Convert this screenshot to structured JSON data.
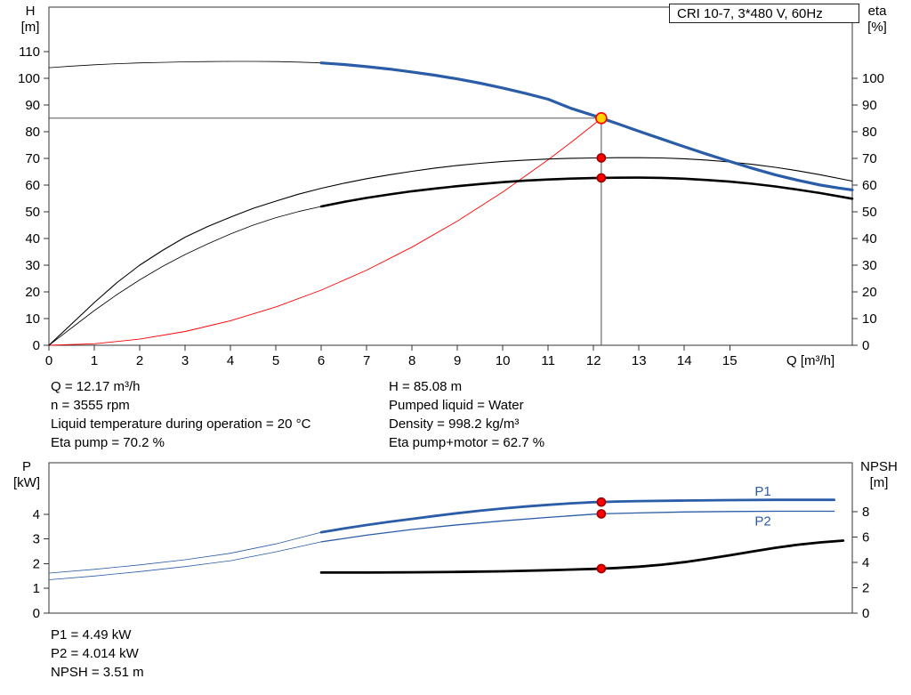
{
  "title_box": "CRI 10-7, 3*480 V, 60Hz",
  "axes": {
    "top_left": [
      "H",
      "[m]"
    ],
    "top_right": [
      "eta",
      "[%]"
    ],
    "x_label": "Q [m³/h]",
    "bottom_left": [
      "P",
      "[kW]"
    ],
    "bottom_right": [
      "NPSH",
      "[m]"
    ]
  },
  "info_top": {
    "left": [
      "Q = 12.17 m³/h",
      "n = 3555 rpm",
      "Liquid temperature during operation = 20 °C",
      "Eta pump = 70.2 %"
    ],
    "right": [
      "H = 85.08 m",
      "Pumped liquid = Water",
      "Density = 998.2 kg/m³",
      "Eta pump+motor = 62.7 %"
    ]
  },
  "info_bottom": [
    "P1 = 4.49 kW",
    "P2 = 4.014 kW",
    "NPSH = 3.51 m"
  ],
  "colors": {
    "pump_blue": "#2a5ca8",
    "black": "#000000",
    "system_red": "#ff0000",
    "guide_gray": "#3a3a3a",
    "marker_yellow": "#ffd400",
    "marker_red": "#ff0000"
  },
  "chart_data": [
    {
      "type": "line",
      "title": "CRI 10-7, 3*480 V, 60Hz — QH and efficiency curves",
      "xlabel": "Q [m³/h]",
      "ylabel_left": "H [m]",
      "ylabel_right": "eta [%]",
      "xlim": [
        0,
        17.7
      ],
      "ylim_left": [
        0,
        126.7
      ],
      "ylim_right": [
        0,
        126.7
      ],
      "x_ticks": [
        0,
        1,
        2,
        3,
        4,
        5,
        6,
        7,
        8,
        9,
        10,
        11,
        12,
        13,
        14,
        15
      ],
      "y_left_ticks": [
        0,
        10,
        20,
        30,
        40,
        50,
        60,
        70,
        80,
        90,
        100,
        110
      ],
      "y_right_ticks": [
        0,
        10,
        20,
        30,
        40,
        50,
        60,
        70,
        80,
        90,
        100
      ],
      "grid": false,
      "series": [
        {
          "name": "h-guide",
          "axis": "left",
          "color": "#3a3a3a",
          "width": 0.9,
          "points": [
            [
              0,
              85.08
            ],
            [
              12.17,
              85.08
            ]
          ]
        },
        {
          "name": "v-guide",
          "axis": "left",
          "color": "#3a3a3a",
          "width": 0.9,
          "points": [
            [
              12.17,
              0
            ],
            [
              12.17,
              85.08
            ]
          ]
        },
        {
          "name": "system-curve",
          "axis": "left",
          "color": "#ff0000",
          "width": 0.9,
          "points": [
            [
              0,
              0
            ],
            [
              1,
              0.57
            ],
            [
              2,
              2.3
            ],
            [
              3,
              5.17
            ],
            [
              4,
              9.19
            ],
            [
              5,
              14.36
            ],
            [
              6,
              20.68
            ],
            [
              7,
              28.15
            ],
            [
              8,
              36.77
            ],
            [
              9,
              46.54
            ],
            [
              10,
              57.45
            ],
            [
              11,
              69.51
            ],
            [
              11.5,
              75.98
            ],
            [
              12,
              82.7
            ],
            [
              12.17,
              85.08
            ]
          ]
        },
        {
          "name": "head-curve-thin",
          "axis": "left",
          "color": "#000000",
          "width": 0.8,
          "points": [
            [
              0,
              104
            ],
            [
              0.5,
              104.6
            ],
            [
              1,
              105.1
            ],
            [
              1.5,
              105.5
            ],
            [
              2,
              105.8
            ],
            [
              2.5,
              106.0
            ],
            [
              3,
              106.2
            ],
            [
              3.5,
              106.3
            ],
            [
              4,
              106.35
            ],
            [
              4.5,
              106.35
            ],
            [
              5,
              106.3
            ],
            [
              5.5,
              106.1
            ],
            [
              6,
              105.8
            ]
          ]
        },
        {
          "name": "eta-pump",
          "axis": "right",
          "color": "#000000",
          "width": 1.1,
          "points": [
            [
              0,
              0
            ],
            [
              0.5,
              8
            ],
            [
              1,
              16
            ],
            [
              1.5,
              23.5
            ],
            [
              2,
              30
            ],
            [
              2.5,
              35.5
            ],
            [
              3,
              40.5
            ],
            [
              3.5,
              44.5
            ],
            [
              4,
              48
            ],
            [
              4.5,
              51.3
            ],
            [
              5,
              54
            ],
            [
              5.5,
              56.6
            ],
            [
              6,
              58.8
            ],
            [
              6.5,
              60.7
            ],
            [
              7,
              62.4
            ],
            [
              7.5,
              63.9
            ],
            [
              8,
              65.2
            ],
            [
              8.5,
              66.4
            ],
            [
              9,
              67.4
            ],
            [
              9.5,
              68.2
            ],
            [
              10,
              68.9
            ],
            [
              10.5,
              69.4
            ],
            [
              11,
              69.8
            ],
            [
              11.5,
              70.05
            ],
            [
              12,
              70.18
            ],
            [
              12.17,
              70.2
            ],
            [
              12.5,
              70.3
            ],
            [
              13,
              70.3
            ],
            [
              13.5,
              70.2
            ],
            [
              14,
              69.9
            ],
            [
              14.5,
              69.4
            ],
            [
              15,
              68.7
            ],
            [
              15.5,
              67.8
            ],
            [
              16,
              66.7
            ],
            [
              16.5,
              65.4
            ],
            [
              17,
              63.9
            ],
            [
              17.7,
              61.5
            ]
          ]
        },
        {
          "name": "eta-pump-motor-thin",
          "axis": "right",
          "color": "#000000",
          "width": 0.8,
          "points": [
            [
              0,
              0
            ],
            [
              0.5,
              6.5
            ],
            [
              1,
              13
            ],
            [
              1.5,
              19
            ],
            [
              2,
              24.5
            ],
            [
              2.5,
              29.5
            ],
            [
              3,
              34
            ],
            [
              3.5,
              38
            ],
            [
              4,
              41.7
            ],
            [
              4.5,
              45
            ],
            [
              5,
              47.8
            ],
            [
              5.5,
              50.1
            ],
            [
              6,
              52
            ]
          ]
        },
        {
          "name": "eta-pump-motor-bold",
          "axis": "right",
          "color": "#000000",
          "width": 2.6,
          "points": [
            [
              6,
              52
            ],
            [
              6.5,
              53.7
            ],
            [
              7,
              55.2
            ],
            [
              7.5,
              56.5
            ],
            [
              8,
              57.7
            ],
            [
              8.5,
              58.7
            ],
            [
              9,
              59.6
            ],
            [
              9.5,
              60.4
            ],
            [
              10,
              61.1
            ],
            [
              10.5,
              61.7
            ],
            [
              11,
              62.1
            ],
            [
              11.5,
              62.45
            ],
            [
              12,
              62.65
            ],
            [
              12.17,
              62.7
            ],
            [
              12.5,
              62.78
            ],
            [
              13,
              62.8
            ],
            [
              13.5,
              62.7
            ],
            [
              14,
              62.4
            ],
            [
              14.5,
              61.9
            ],
            [
              15,
              61.3
            ],
            [
              15.5,
              60.5
            ],
            [
              16,
              59.5
            ],
            [
              16.5,
              58.3
            ],
            [
              17,
              57.0
            ],
            [
              17.7,
              54.9
            ]
          ]
        },
        {
          "name": "head-curve-bold",
          "axis": "left",
          "color": "#2a5ca8",
          "width": 3.2,
          "points": [
            [
              6,
              105.8
            ],
            [
              6.5,
              105.2
            ],
            [
              7,
              104.4
            ],
            [
              7.5,
              103.5
            ],
            [
              8,
              102.4
            ],
            [
              8.5,
              101.2
            ],
            [
              9,
              99.8
            ],
            [
              9.5,
              98.2
            ],
            [
              10,
              96.4
            ],
            [
              10.5,
              94.4
            ],
            [
              11,
              92.2
            ],
            [
              11.5,
              88.8
            ],
            [
              12,
              86.1
            ],
            [
              12.17,
              85.08
            ],
            [
              12.5,
              83.2
            ],
            [
              13,
              80.2
            ],
            [
              13.5,
              77.3
            ],
            [
              14,
              74.4
            ],
            [
              14.5,
              71.6
            ],
            [
              15,
              68.9
            ],
            [
              15.5,
              66.3
            ],
            [
              16,
              63.9
            ],
            [
              16.5,
              61.8
            ],
            [
              17,
              60.0
            ],
            [
              17.4,
              58.9
            ],
            [
              17.7,
              58.2
            ]
          ]
        }
      ],
      "labels": [],
      "markers": [
        {
          "name": "operating-point",
          "x": 12.17,
          "y": 85.08,
          "axis": "left",
          "r": 6,
          "fill": "#ffd400",
          "stroke": "#ff0000"
        },
        {
          "name": "eta-pump-point",
          "x": 12.17,
          "y": 70.2,
          "axis": "right",
          "r": 4.5,
          "fill": "#ff0000",
          "stroke": "#a00000"
        },
        {
          "name": "eta-pump-motor-point",
          "x": 12.17,
          "y": 62.7,
          "axis": "right",
          "r": 4.5,
          "fill": "#ff0000",
          "stroke": "#a00000"
        }
      ]
    },
    {
      "type": "line",
      "title": "Power and NPSH curves",
      "xlabel": "",
      "ylabel_left": "P [kW]",
      "ylabel_right": "NPSH [m]",
      "xlim": [
        0,
        17.7
      ],
      "ylim_left": [
        0,
        6.08
      ],
      "ylim_right": [
        0,
        11.86
      ],
      "x_ticks": [],
      "y_left_ticks": [
        0,
        1,
        2,
        3,
        4
      ],
      "y_right_ticks": [
        0,
        2,
        4,
        6,
        8
      ],
      "grid": false,
      "series": [
        {
          "name": "p2-thin",
          "axis": "left",
          "color": "#2a5ca8",
          "width": 0.8,
          "points": [
            [
              0,
              1.35
            ],
            [
              1,
              1.5
            ],
            [
              2,
              1.68
            ],
            [
              3,
              1.88
            ],
            [
              4,
              2.12
            ],
            [
              5,
              2.48
            ],
            [
              6,
              2.88
            ]
          ]
        },
        {
          "name": "p2-curve",
          "axis": "left",
          "color": "#2a5ca8",
          "width": 1.3,
          "points": [
            [
              6,
              2.88
            ],
            [
              7,
              3.15
            ],
            [
              8,
              3.38
            ],
            [
              9,
              3.57
            ],
            [
              10,
              3.73
            ],
            [
              11,
              3.87
            ],
            [
              12,
              4.0
            ],
            [
              12.17,
              4.014
            ],
            [
              13,
              4.05
            ],
            [
              14,
              4.09
            ],
            [
              15,
              4.11
            ],
            [
              16,
              4.12
            ],
            [
              17.3,
              4.12
            ]
          ]
        },
        {
          "name": "p1-thin",
          "axis": "left",
          "color": "#2a5ca8",
          "width": 0.8,
          "points": [
            [
              0,
              1.62
            ],
            [
              1,
              1.77
            ],
            [
              2,
              1.95
            ],
            [
              3,
              2.16
            ],
            [
              4,
              2.42
            ],
            [
              5,
              2.8
            ],
            [
              6,
              3.27
            ]
          ]
        },
        {
          "name": "p1-bold",
          "axis": "left",
          "color": "#2a5ca8",
          "width": 2.8,
          "points": [
            [
              6,
              3.27
            ],
            [
              6.5,
              3.42
            ],
            [
              7,
              3.56
            ],
            [
              7.5,
              3.69
            ],
            [
              8,
              3.81
            ],
            [
              8.5,
              3.93
            ],
            [
              9,
              4.04
            ],
            [
              9.5,
              4.14
            ],
            [
              10,
              4.23
            ],
            [
              10.5,
              4.31
            ],
            [
              11,
              4.38
            ],
            [
              11.5,
              4.44
            ],
            [
              12,
              4.485
            ],
            [
              12.17,
              4.49
            ],
            [
              12.5,
              4.51
            ],
            [
              13,
              4.53
            ],
            [
              14,
              4.55
            ],
            [
              15,
              4.57
            ],
            [
              16,
              4.58
            ],
            [
              17.3,
              4.58
            ]
          ]
        },
        {
          "name": "npsh-curve",
          "axis": "right",
          "color": "#000000",
          "width": 2.8,
          "points": [
            [
              6,
              3.2
            ],
            [
              7,
              3.2
            ],
            [
              8,
              3.22
            ],
            [
              9,
              3.25
            ],
            [
              10,
              3.3
            ],
            [
              11,
              3.38
            ],
            [
              12,
              3.49
            ],
            [
              12.17,
              3.51
            ],
            [
              12.5,
              3.56
            ],
            [
              13,
              3.66
            ],
            [
              13.5,
              3.82
            ],
            [
              14,
              4.02
            ],
            [
              14.5,
              4.28
            ],
            [
              15,
              4.56
            ],
            [
              15.5,
              4.86
            ],
            [
              16,
              5.15
            ],
            [
              16.5,
              5.4
            ],
            [
              17,
              5.58
            ],
            [
              17.5,
              5.72
            ]
          ]
        }
      ],
      "labels": [
        {
          "text": "P1",
          "x": 15.55,
          "y": 4.75,
          "axis": "left",
          "color": "#2a5ca8"
        },
        {
          "text": "P2",
          "x": 15.55,
          "y": 3.55,
          "axis": "left",
          "color": "#2a5ca8"
        }
      ],
      "markers": [
        {
          "name": "p1-point",
          "x": 12.17,
          "y": 4.49,
          "axis": "left",
          "r": 4.5,
          "fill": "#ff0000",
          "stroke": "#a00000"
        },
        {
          "name": "p2-point",
          "x": 12.17,
          "y": 4.014,
          "axis": "left",
          "r": 4.5,
          "fill": "#ff0000",
          "stroke": "#a00000"
        },
        {
          "name": "npsh-point",
          "x": 12.17,
          "y": 3.51,
          "axis": "right",
          "r": 4.5,
          "fill": "#ff0000",
          "stroke": "#a00000"
        }
      ]
    }
  ]
}
